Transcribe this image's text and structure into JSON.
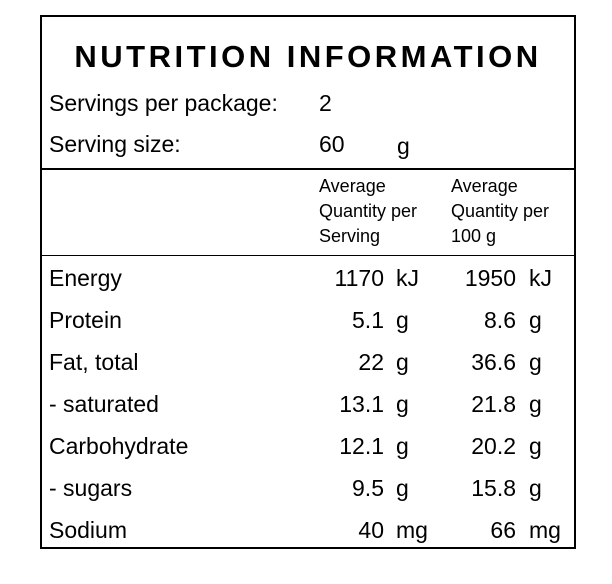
{
  "panel": {
    "title": "NUTRITION INFORMATION",
    "servings_label": "Servings per package:",
    "servings_value": "2",
    "serving_size_label": "Serving size:",
    "serving_size_value": "60",
    "serving_size_unit": "g"
  },
  "columns": {
    "per_serving": [
      "Average",
      "Quantity per",
      "Serving"
    ],
    "per_100g": [
      "Average",
      "Quantity per",
      "100 g"
    ]
  },
  "rows": [
    {
      "name": "Energy",
      "serving": "1170",
      "serving_unit": "kJ",
      "per100": "1950",
      "per100_unit": "kJ"
    },
    {
      "name": "Protein",
      "serving": "5.1",
      "serving_unit": "g",
      "per100": "8.6",
      "per100_unit": "g"
    },
    {
      "name": "Fat, total",
      "serving": "22",
      "serving_unit": "g",
      "per100": "36.6",
      "per100_unit": "g"
    },
    {
      "name": "- saturated",
      "serving": "13.1",
      "serving_unit": "g",
      "per100": "21.8",
      "per100_unit": "g"
    },
    {
      "name": "Carbohydrate",
      "serving": "12.1",
      "serving_unit": "g",
      "per100": "20.2",
      "per100_unit": "g"
    },
    {
      "name": "- sugars",
      "serving": "9.5",
      "serving_unit": "g",
      "per100": "15.8",
      "per100_unit": "g"
    },
    {
      "name": "Sodium",
      "serving": "40",
      "serving_unit": "mg",
      "per100": "66",
      "per100_unit": "mg"
    }
  ]
}
